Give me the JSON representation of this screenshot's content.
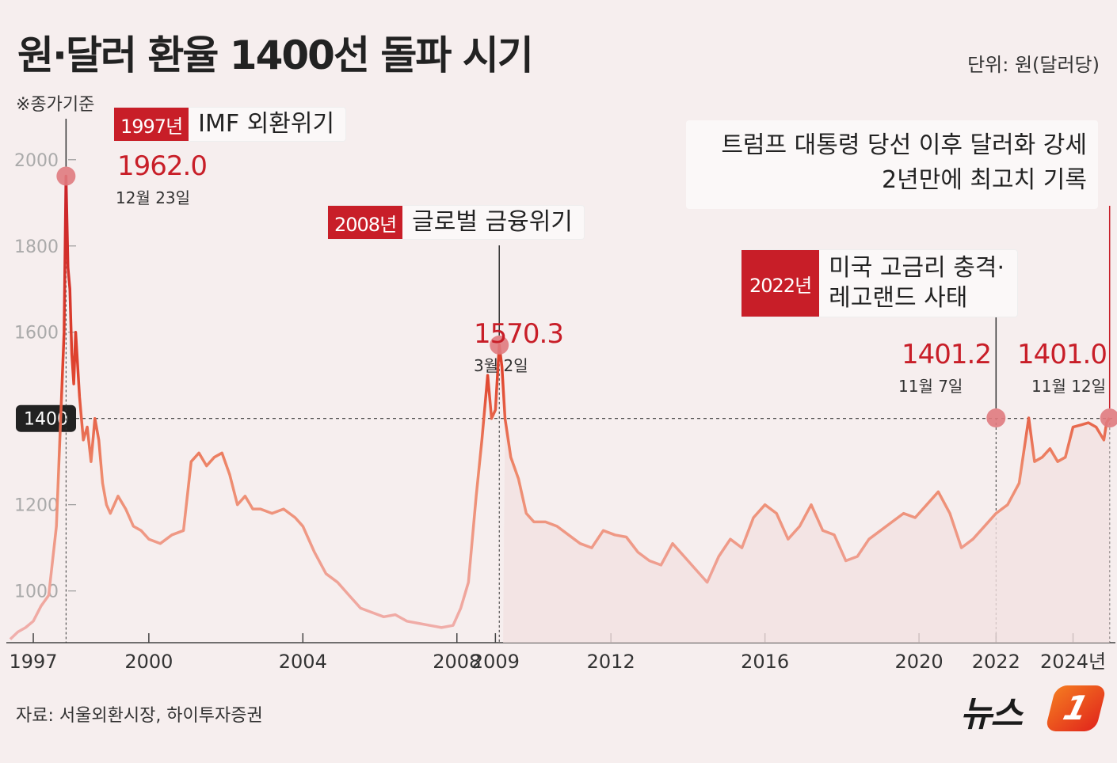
{
  "title": "원·달러 환율 1400선 돌파 시기",
  "unit_label": "단위: 원(달러당)",
  "basis_note": "※종가기준",
  "source": "자료: 서울외환시장, 하이투자증권",
  "logo": {
    "text": "뉴스",
    "mark": "1"
  },
  "colors": {
    "accent_red": "#c81e28",
    "line_light": "#f0b0ae",
    "line_mid": "#ee8a6c",
    "background": "#f6eeee"
  },
  "annotations": [
    {
      "year": "1997년",
      "text": "IMF 외환위기"
    },
    {
      "year": "2008년",
      "text": "글로벌 금융위기"
    },
    {
      "year": "2022년",
      "text_lines": [
        "미국 고금리 충격·",
        "레고랜드 사태"
      ]
    }
  ],
  "trump_note": {
    "lines": [
      "트럼프 대통령 당선 이후 달러화 강세",
      "2년만에 최고치 기록"
    ]
  },
  "peaks": [
    {
      "value": "1962.0",
      "date": "12월 23일"
    },
    {
      "value": "1570.3",
      "date": "3월 2일"
    },
    {
      "value": "1401.2",
      "date": "11월 7일"
    },
    {
      "value": "1401.0",
      "date": "11월 12일"
    }
  ],
  "chart_data": {
    "type": "line",
    "title": "원·달러 환율 1400선 돌파 시기",
    "ylabel": "",
    "xlabel": "",
    "ylim": [
      880,
      2040
    ],
    "xlim": [
      1996.3,
      2025.1
    ],
    "y_ticks": [
      1000,
      1200,
      1400,
      1600,
      1800,
      2000
    ],
    "y_tick_labels": [
      "1000",
      "1200",
      "1400",
      "1600",
      "1800",
      "2000"
    ],
    "x_ticks": [
      1997.0,
      2000.0,
      2004.0,
      2008.0,
      2009.0,
      2012.0,
      2016.0,
      2020.0,
      2022.0,
      2024.0
    ],
    "x_tick_labels": [
      "1997",
      "2000",
      "2004",
      "2008",
      "2009",
      "2012",
      "2016",
      "2020",
      "2022",
      "2024년"
    ],
    "reference_line": {
      "value": 1400,
      "label": "1400"
    },
    "series": [
      {
        "x": [
          1996.4,
          1996.6,
          1996.8,
          1997.0,
          1997.2,
          1997.4,
          1997.6,
          1997.8,
          1997.85,
          1997.9,
          1997.95,
          1998.0,
          1998.05,
          1998.1,
          1998.2,
          1998.3,
          1998.4,
          1998.5,
          1998.6,
          1998.7,
          1998.8,
          1998.9,
          1999.0,
          1999.2,
          1999.4,
          1999.6,
          1999.8,
          2000.0,
          2000.3,
          2000.6,
          2000.9,
          2001.1,
          2001.3,
          2001.5,
          2001.7,
          2001.9,
          2002.1,
          2002.3,
          2002.5,
          2002.7,
          2002.9,
          2003.2,
          2003.5,
          2003.8,
          2004.0,
          2004.3,
          2004.6,
          2004.9,
          2005.2,
          2005.5,
          2005.8,
          2006.1,
          2006.4,
          2006.7,
          2007.0,
          2007.3,
          2007.6,
          2007.9,
          2008.1,
          2008.3,
          2008.5,
          2008.65,
          2008.8,
          2008.9,
          2009.0,
          2009.1,
          2009.17,
          2009.25,
          2009.4,
          2009.6,
          2009.8,
          2010.0,
          2010.3,
          2010.6,
          2010.9,
          2011.2,
          2011.5,
          2011.8,
          2012.1,
          2012.4,
          2012.7,
          2013.0,
          2013.3,
          2013.6,
          2013.9,
          2014.2,
          2014.5,
          2014.8,
          2015.1,
          2015.4,
          2015.7,
          2016.0,
          2016.3,
          2016.6,
          2016.9,
          2017.2,
          2017.5,
          2017.8,
          2018.1,
          2018.4,
          2018.7,
          2019.0,
          2019.3,
          2019.6,
          2019.9,
          2020.2,
          2020.5,
          2020.8,
          2021.1,
          2021.4,
          2021.7,
          2022.0,
          2022.3,
          2022.6,
          2022.85,
          2023.0,
          2023.2,
          2023.4,
          2023.6,
          2023.8,
          2024.0,
          2024.2,
          2024.4,
          2024.6,
          2024.8,
          2024.87,
          2024.95
        ],
        "y": [
          888,
          905,
          915,
          930,
          965,
          990,
          1150,
          1600,
          1962,
          1750,
          1700,
          1550,
          1480,
          1600,
          1450,
          1350,
          1380,
          1300,
          1400,
          1350,
          1250,
          1200,
          1180,
          1220,
          1190,
          1150,
          1140,
          1120,
          1110,
          1130,
          1140,
          1300,
          1320,
          1290,
          1310,
          1320,
          1270,
          1200,
          1220,
          1190,
          1190,
          1180,
          1190,
          1170,
          1150,
          1090,
          1040,
          1020,
          990,
          960,
          950,
          940,
          945,
          930,
          925,
          920,
          915,
          920,
          960,
          1020,
          1220,
          1350,
          1500,
          1400,
          1420,
          1570.3,
          1520,
          1400,
          1310,
          1260,
          1180,
          1160,
          1160,
          1150,
          1130,
          1110,
          1100,
          1140,
          1130,
          1125,
          1090,
          1070,
          1060,
          1110,
          1080,
          1050,
          1020,
          1080,
          1120,
          1100,
          1170,
          1200,
          1180,
          1120,
          1150,
          1200,
          1140,
          1130,
          1070,
          1080,
          1120,
          1140,
          1160,
          1180,
          1170,
          1200,
          1230,
          1180,
          1100,
          1120,
          1150,
          1180,
          1200,
          1250,
          1401.2,
          1300,
          1310,
          1330,
          1300,
          1310,
          1380,
          1385,
          1390,
          1380,
          1350,
          1390,
          1401
        ]
      }
    ]
  }
}
